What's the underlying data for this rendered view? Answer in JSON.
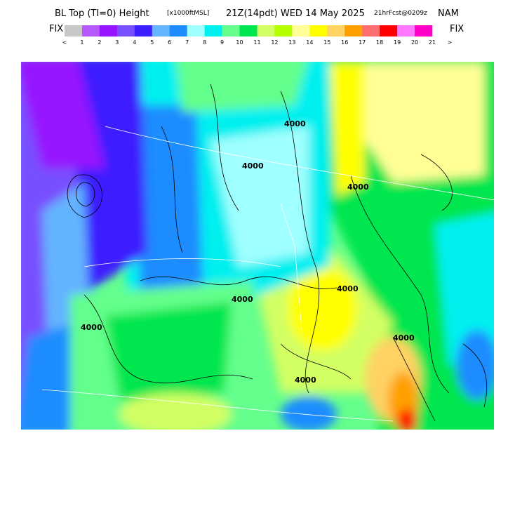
{
  "header": {
    "title": "BL Top (TI=0) Height",
    "units": "[x1000ftMSL]",
    "valid_time": "21Z(14pdt) WED 14 May 2025",
    "forecast": "21hrFcst@0209z",
    "model": "NAM"
  },
  "legend": {
    "left_label": "FIX",
    "right_label": "FIX",
    "colors": [
      "#c8c8c8",
      "#b45aff",
      "#9614ff",
      "#7850ff",
      "#3c1eff",
      "#64b4ff",
      "#1e8cff",
      "#a0ffff",
      "#00f0f0",
      "#64ff8c",
      "#00e650",
      "#d2ff64",
      "#b4ff00",
      "#ffff96",
      "#ffff00",
      "#ffd264",
      "#ffa000",
      "#ff6e6e",
      "#ff0000",
      "#ff78ff",
      "#ff00c8"
    ],
    "tick_labels": [
      "<",
      "1",
      "2",
      "3",
      "4",
      "5",
      "6",
      "7",
      "8",
      "9",
      "10",
      "11",
      "12",
      "13",
      "14",
      "15",
      "16",
      "17",
      "18",
      "19",
      "20",
      "21",
      ">"
    ]
  },
  "map": {
    "contour_labels": [
      "4000",
      "4000",
      "4000",
      "4000",
      "4000",
      "4000",
      "4000",
      "4000"
    ]
  }
}
